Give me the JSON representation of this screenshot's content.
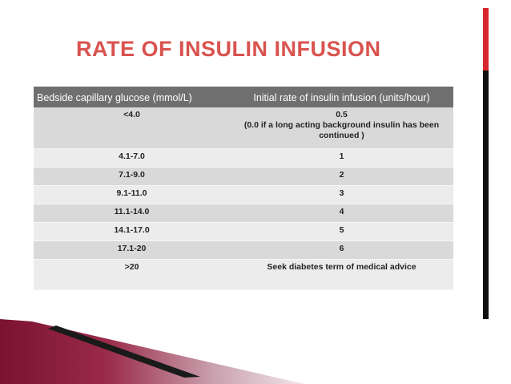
{
  "title": "RATE OF INSULIN INFUSION",
  "table": {
    "headers": {
      "glucose": "Bedside capillary glucose (mmol/L)",
      "rate": "Initial rate of insulin infusion (units/hour)"
    },
    "rows": [
      {
        "glucose": "<4.0",
        "rate": "0.5",
        "note": "(0.0 if a long acting background insulin has been continued )"
      },
      {
        "glucose": "4.1-7.0",
        "rate": "1"
      },
      {
        "glucose": "7.1-9.0",
        "rate": "2"
      },
      {
        "glucose": "9.1-11.0",
        "rate": "3"
      },
      {
        "glucose": "11.1-14.0",
        "rate": "4"
      },
      {
        "glucose": "14.1-17.0",
        "rate": "5"
      },
      {
        "glucose": "17.1-20",
        "rate": "6"
      },
      {
        "glucose": ">20",
        "rate": "Seek diabetes term of medical advice"
      }
    ]
  },
  "colors": {
    "title": "#d9534f",
    "header_bg": "#6f6f6f",
    "row_dark": "#d9d9d9",
    "row_light": "#ececec",
    "accent_red": "#d7262c",
    "wedge_maroon": "#8b1a3a"
  }
}
